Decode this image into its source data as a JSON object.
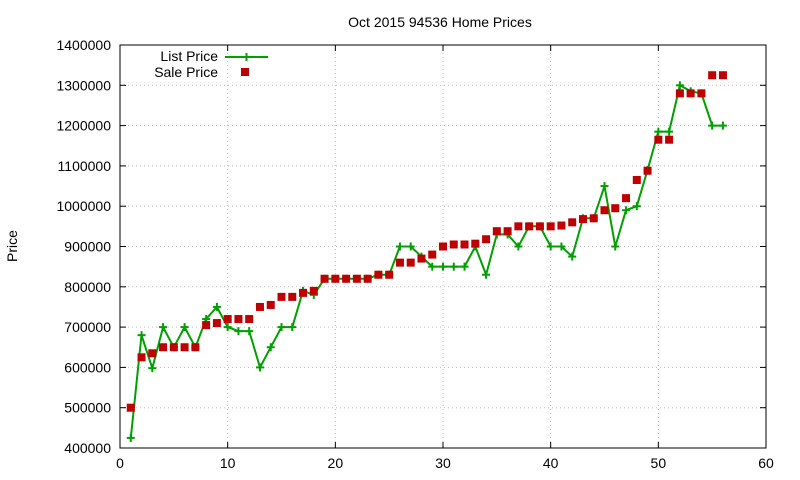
{
  "chart_data": {
    "type": "line",
    "title": "Oct 2015 94536 Home Prices",
    "xlabel": "",
    "ylabel": "Price",
    "xlim": [
      0,
      60
    ],
    "ylim": [
      400000,
      1400000
    ],
    "x_ticks": [
      "0",
      "10",
      "20",
      "30",
      "40",
      "50",
      "60"
    ],
    "y_ticks": [
      "400000",
      "500000",
      "600000",
      "700000",
      "800000",
      "900000",
      "1000000",
      "1100000",
      "1200000",
      "1300000",
      "1400000"
    ],
    "grid": true,
    "legend_position": "top-left",
    "series": [
      {
        "name": "List Price",
        "style": "line-with-plus-markers",
        "color": "#00a000",
        "points": [
          [
            1,
            425000
          ],
          [
            2,
            680000
          ],
          [
            3,
            598000
          ],
          [
            4,
            700000
          ],
          [
            5,
            650000
          ],
          [
            6,
            700000
          ],
          [
            7,
            650000
          ],
          [
            8,
            720000
          ],
          [
            9,
            750000
          ],
          [
            10,
            700000
          ],
          [
            11,
            690000
          ],
          [
            12,
            690000
          ],
          [
            13,
            600000
          ],
          [
            14,
            650000
          ],
          [
            15,
            700000
          ],
          [
            16,
            700000
          ],
          [
            17,
            790000
          ],
          [
            18,
            780000
          ],
          [
            19,
            820000
          ],
          [
            20,
            820000
          ],
          [
            21,
            820000
          ],
          [
            22,
            820000
          ],
          [
            23,
            820000
          ],
          [
            24,
            830000
          ],
          [
            25,
            830000
          ],
          [
            26,
            900000
          ],
          [
            27,
            900000
          ],
          [
            28,
            875000
          ],
          [
            29,
            850000
          ],
          [
            30,
            850000
          ],
          [
            31,
            850000
          ],
          [
            32,
            850000
          ],
          [
            33,
            900000
          ],
          [
            34,
            830000
          ],
          [
            35,
            930000
          ],
          [
            36,
            930000
          ],
          [
            37,
            900000
          ],
          [
            38,
            950000
          ],
          [
            39,
            950000
          ],
          [
            40,
            900000
          ],
          [
            41,
            900000
          ],
          [
            42,
            875000
          ],
          [
            43,
            970000
          ],
          [
            44,
            970000
          ],
          [
            45,
            1050000
          ],
          [
            46,
            900000
          ],
          [
            47,
            990000
          ],
          [
            48,
            1000000
          ],
          [
            49,
            1090000
          ],
          [
            50,
            1185000
          ],
          [
            51,
            1185000
          ],
          [
            52,
            1300000
          ],
          [
            53,
            1285000
          ],
          [
            54,
            1280000
          ],
          [
            55,
            1200000
          ],
          [
            56,
            1200000
          ]
        ]
      },
      {
        "name": "Sale Price",
        "style": "square-markers",
        "color": "#c00000",
        "points": [
          [
            1,
            500000
          ],
          [
            2,
            625000
          ],
          [
            3,
            635000
          ],
          [
            4,
            650000
          ],
          [
            5,
            650000
          ],
          [
            6,
            650000
          ],
          [
            7,
            650000
          ],
          [
            8,
            705000
          ],
          [
            9,
            710000
          ],
          [
            10,
            720000
          ],
          [
            11,
            720000
          ],
          [
            12,
            720000
          ],
          [
            13,
            750000
          ],
          [
            14,
            755000
          ],
          [
            15,
            775000
          ],
          [
            16,
            775000
          ],
          [
            17,
            785000
          ],
          [
            18,
            790000
          ],
          [
            19,
            820000
          ],
          [
            20,
            820000
          ],
          [
            21,
            820000
          ],
          [
            22,
            820000
          ],
          [
            23,
            820000
          ],
          [
            24,
            830000
          ],
          [
            25,
            830000
          ],
          [
            26,
            860000
          ],
          [
            27,
            860000
          ],
          [
            28,
            870000
          ],
          [
            29,
            880000
          ],
          [
            30,
            900000
          ],
          [
            31,
            905000
          ],
          [
            32,
            905000
          ],
          [
            33,
            907000
          ],
          [
            34,
            918000
          ],
          [
            35,
            938000
          ],
          [
            36,
            938000
          ],
          [
            37,
            950000
          ],
          [
            38,
            950000
          ],
          [
            39,
            950000
          ],
          [
            40,
            950000
          ],
          [
            41,
            952000
          ],
          [
            42,
            960000
          ],
          [
            43,
            968000
          ],
          [
            44,
            970000
          ],
          [
            45,
            990000
          ],
          [
            46,
            995000
          ],
          [
            47,
            1020000
          ],
          [
            48,
            1065000
          ],
          [
            49,
            1088000
          ],
          [
            50,
            1165000
          ],
          [
            51,
            1165000
          ],
          [
            52,
            1280000
          ],
          [
            53,
            1280000
          ],
          [
            54,
            1280000
          ],
          [
            55,
            1325000
          ],
          [
            56,
            1325000
          ]
        ]
      }
    ]
  }
}
